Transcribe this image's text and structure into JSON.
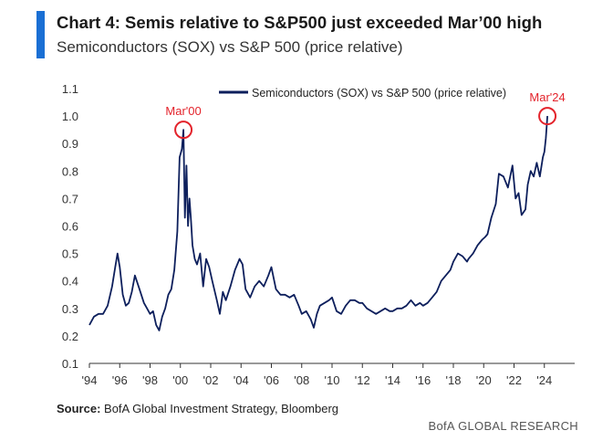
{
  "header": {
    "title": "Chart 4: Semis relative to S&P500 just exceeded Mar’00 high",
    "subtitle": "Semiconductors (SOX) vs S&P 500 (price relative)"
  },
  "footer": {
    "source_label": "Source:",
    "source_text": "BofA Global Investment Strategy, Bloomberg",
    "brand": "BofA GLOBAL RESEARCH"
  },
  "colors": {
    "line": "#0d1f5c",
    "highlight": "#e3232b",
    "accent_bar": "#1a6fd4",
    "axis": "#333333"
  },
  "chart_data": {
    "type": "line",
    "title": "Chart 4: Semis relative to S&P500 just exceeded Mar’00 high",
    "subtitle": "Semiconductors (SOX) vs S&P 500 (price relative)",
    "xlabel": "",
    "ylabel": "",
    "xlim": [
      1994.0,
      2026.0
    ],
    "ylim": [
      0.1,
      1.1
    ],
    "yticks": [
      0.1,
      0.2,
      0.3,
      0.4,
      0.5,
      0.6,
      0.7,
      0.8,
      0.9,
      1.0,
      1.1
    ],
    "ytick_labels": [
      "0.1",
      "0.2",
      "0.3",
      "0.4",
      "0.5",
      "0.6",
      "0.7",
      "0.8",
      "0.9",
      "1.0",
      "1.1"
    ],
    "xticks": [
      1994,
      1996,
      1998,
      2000,
      2002,
      2004,
      2006,
      2008,
      2010,
      2012,
      2014,
      2016,
      2018,
      2020,
      2022,
      2024
    ],
    "xtick_labels": [
      "'94",
      "'96",
      "'98",
      "'00",
      "'02",
      "'04",
      "'06",
      "'08",
      "'10",
      "'12",
      "'14",
      "'16",
      "'18",
      "'20",
      "'22",
      "'24"
    ],
    "grid": false,
    "legend": {
      "position": "top-center",
      "entries": [
        "Semiconductors (SOX) vs S&P 500 (price relative)"
      ]
    },
    "annotations": [
      {
        "label": "Mar'00",
        "x": 2000.2,
        "y": 0.95
      },
      {
        "label": "Mar'24",
        "x": 2024.2,
        "y": 1.0
      }
    ],
    "series": [
      {
        "name": "Semiconductors (SOX) vs S&P 500 (price relative)",
        "x": [
          1994.0,
          1994.3,
          1994.6,
          1994.9,
          1995.2,
          1995.5,
          1995.7,
          1995.85,
          1996.0,
          1996.2,
          1996.4,
          1996.6,
          1996.8,
          1997.0,
          1997.3,
          1997.6,
          1997.8,
          1998.0,
          1998.2,
          1998.4,
          1998.6,
          1998.8,
          1999.0,
          1999.2,
          1999.4,
          1999.6,
          1999.8,
          1999.95,
          2000.1,
          2000.2,
          2000.3,
          2000.4,
          2000.5,
          2000.6,
          2000.7,
          2000.8,
          2000.95,
          2001.1,
          2001.3,
          2001.5,
          2001.7,
          2001.9,
          2002.1,
          2002.4,
          2002.6,
          2002.8,
          2003.0,
          2003.3,
          2003.6,
          2003.9,
          2004.1,
          2004.3,
          2004.6,
          2004.9,
          2005.2,
          2005.5,
          2005.8,
          2006.0,
          2006.3,
          2006.6,
          2006.9,
          2007.2,
          2007.5,
          2007.8,
          2008.0,
          2008.3,
          2008.6,
          2008.8,
          2009.0,
          2009.2,
          2009.5,
          2009.8,
          2010.0,
          2010.3,
          2010.6,
          2010.9,
          2011.2,
          2011.5,
          2011.8,
          2012.0,
          2012.3,
          2012.6,
          2012.9,
          2013.2,
          2013.5,
          2013.8,
          2014.0,
          2014.3,
          2014.6,
          2014.9,
          2015.2,
          2015.5,
          2015.8,
          2016.0,
          2016.3,
          2016.6,
          2016.9,
          2017.2,
          2017.5,
          2017.8,
          2018.0,
          2018.3,
          2018.6,
          2018.9,
          2019.0,
          2019.3,
          2019.6,
          2019.9,
          2020.1,
          2020.25,
          2020.5,
          2020.8,
          2021.0,
          2021.3,
          2021.6,
          2021.9,
          2022.1,
          2022.3,
          2022.5,
          2022.75,
          2022.9,
          2023.1,
          2023.3,
          2023.5,
          2023.7,
          2023.9,
          2024.0,
          2024.1,
          2024.2
        ],
        "y": [
          0.24,
          0.27,
          0.28,
          0.28,
          0.31,
          0.38,
          0.45,
          0.5,
          0.45,
          0.35,
          0.31,
          0.32,
          0.36,
          0.42,
          0.37,
          0.32,
          0.3,
          0.28,
          0.29,
          0.24,
          0.22,
          0.27,
          0.3,
          0.35,
          0.37,
          0.44,
          0.58,
          0.85,
          0.88,
          0.95,
          0.63,
          0.82,
          0.6,
          0.7,
          0.62,
          0.53,
          0.48,
          0.46,
          0.5,
          0.38,
          0.48,
          0.45,
          0.4,
          0.33,
          0.28,
          0.36,
          0.33,
          0.38,
          0.44,
          0.48,
          0.46,
          0.37,
          0.34,
          0.38,
          0.4,
          0.38,
          0.42,
          0.45,
          0.37,
          0.35,
          0.35,
          0.34,
          0.35,
          0.31,
          0.28,
          0.29,
          0.26,
          0.23,
          0.28,
          0.31,
          0.32,
          0.33,
          0.34,
          0.29,
          0.28,
          0.31,
          0.33,
          0.33,
          0.32,
          0.32,
          0.3,
          0.29,
          0.28,
          0.29,
          0.3,
          0.29,
          0.29,
          0.3,
          0.3,
          0.31,
          0.33,
          0.31,
          0.32,
          0.31,
          0.32,
          0.34,
          0.36,
          0.4,
          0.42,
          0.44,
          0.47,
          0.5,
          0.49,
          0.47,
          0.48,
          0.5,
          0.53,
          0.55,
          0.56,
          0.57,
          0.63,
          0.68,
          0.79,
          0.78,
          0.74,
          0.82,
          0.7,
          0.72,
          0.64,
          0.66,
          0.75,
          0.8,
          0.78,
          0.83,
          0.78,
          0.85,
          0.87,
          0.92,
          1.0
        ]
      }
    ]
  }
}
